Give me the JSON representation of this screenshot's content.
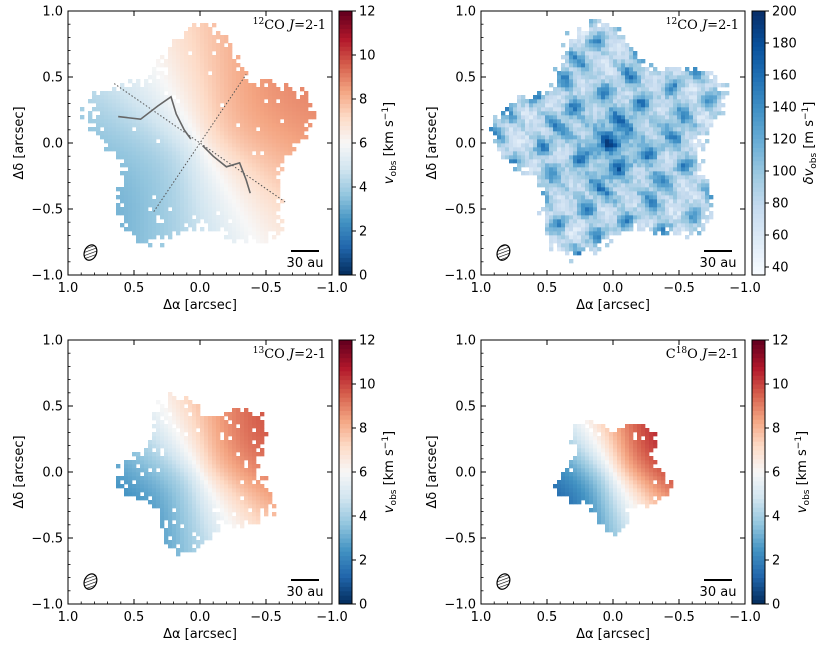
{
  "chart_data": [
    {
      "type": "heatmap",
      "panel": "top-left",
      "label": "12CO J=2-1",
      "label_parts": {
        "iso": "12",
        "mol": "CO",
        "trans": "J",
        "eq": "=2-1"
      },
      "xlabel": "Δα [arcsec]",
      "ylabel": "Δδ [arcsec]",
      "xlim": [
        1.0,
        -1.0
      ],
      "ylim": [
        -1.0,
        1.0
      ],
      "x_ticks": [
        "1.0",
        "0.5",
        "0.0",
        "−0.5",
        "−1.0"
      ],
      "y_ticks": [
        "−1.0",
        "−0.5",
        "0.0",
        "0.5",
        "1.0"
      ],
      "colorbar": {
        "label": "v_obs [km s^-1]",
        "range": [
          0,
          12
        ],
        "ticks": [
          "0",
          "2",
          "4",
          "6",
          "8",
          "10",
          "12"
        ],
        "cmap": "RdBu_r"
      },
      "scalebar": "30 au",
      "beam": {
        "x": 0.83,
        "y": -0.83
      },
      "map": {
        "kind": "velocity",
        "radius": 0.88,
        "pa_deg": 330,
        "grad": 4.5,
        "center": 6
      },
      "overlay": {
        "major_axis": [
          [
            0.65,
            0.45
          ],
          [
            -0.65,
            -0.45
          ]
        ],
        "minor_axis": [
          [
            0.35,
            -0.52
          ],
          [
            -0.35,
            0.52
          ]
        ],
        "contour_blue": [
          [
            0.62,
            0.2
          ],
          [
            0.45,
            0.18
          ],
          [
            0.32,
            0.28
          ],
          [
            0.22,
            0.35
          ],
          [
            0.18,
            0.22
          ],
          [
            0.12,
            0.1
          ],
          [
            0.07,
            0.03
          ]
        ],
        "contour_red": [
          [
            -0.02,
            -0.02
          ],
          [
            -0.1,
            -0.1
          ],
          [
            -0.2,
            -0.18
          ],
          [
            -0.3,
            -0.15
          ],
          [
            -0.35,
            -0.28
          ],
          [
            -0.38,
            -0.38
          ]
        ]
      }
    },
    {
      "type": "heatmap",
      "panel": "top-right",
      "label": "12CO J=2-1",
      "label_parts": {
        "iso": "12",
        "mol": "CO",
        "trans": "J",
        "eq": "=2-1"
      },
      "xlabel": "Δα [arcsec]",
      "ylabel": "Δδ [arcsec]",
      "xlim": [
        1.0,
        -1.0
      ],
      "ylim": [
        -1.0,
        1.0
      ],
      "x_ticks": [
        "1.0",
        "0.5",
        "0.0",
        "−0.5",
        "−1.0"
      ],
      "y_ticks": [
        "−1.0",
        "−0.5",
        "0.0",
        "0.5",
        "1.0"
      ],
      "colorbar": {
        "label": "δv_obs [m s^-1]",
        "range": [
          35,
          200
        ],
        "ticks": [
          "40",
          "60",
          "80",
          "100",
          "120",
          "140",
          "160",
          "180",
          "200"
        ],
        "cmap": "Blues"
      },
      "scalebar": "30 au",
      "beam": {
        "x": 0.83,
        "y": -0.83
      },
      "map": {
        "kind": "linewidth",
        "radius": 0.92
      }
    },
    {
      "type": "heatmap",
      "panel": "bottom-left",
      "label": "13CO J=2-1",
      "label_parts": {
        "iso": "13",
        "mol": "CO",
        "trans": "J",
        "eq": "=2-1"
      },
      "xlabel": "Δα [arcsec]",
      "ylabel": "Δδ [arcsec]",
      "xlim": [
        1.0,
        -1.0
      ],
      "ylim": [
        -1.0,
        1.0
      ],
      "x_ticks": [
        "1.0",
        "0.5",
        "0.0",
        "−0.5",
        "−1.0"
      ],
      "y_ticks": [
        "−1.0",
        "−0.5",
        "0.0",
        "0.5",
        "1.0"
      ],
      "colorbar": {
        "label": "v_obs [km s^-1]",
        "range": [
          0,
          12
        ],
        "ticks": [
          "0",
          "2",
          "4",
          "6",
          "8",
          "10",
          "12"
        ],
        "cmap": "RdBu_r"
      },
      "scalebar": "30 au",
      "beam": {
        "x": 0.83,
        "y": -0.83
      },
      "map": {
        "kind": "velocity",
        "radius": 0.62,
        "pa_deg": 330,
        "grad": 6.5,
        "center": 6
      }
    },
    {
      "type": "heatmap",
      "panel": "bottom-right",
      "label": "C18O J=2-1",
      "label_parts": {
        "iso": "18",
        "mol": "O",
        "prefix": "C",
        "trans": "J",
        "eq": "=2-1"
      },
      "xlabel": "Δα [arcsec]",
      "ylabel": "Δδ [arcsec]",
      "xlim": [
        1.0,
        -1.0
      ],
      "ylim": [
        -1.0,
        1.0
      ],
      "x_ticks": [
        "1.0",
        "0.5",
        "0.0",
        "−0.5",
        "−1.0"
      ],
      "y_ticks": [
        "−1.0",
        "−0.5",
        "0.0",
        "0.5",
        "1.0"
      ],
      "colorbar": {
        "label": "v_obs [km s^-1]",
        "range": [
          0,
          12
        ],
        "ticks": [
          "0",
          "2",
          "4",
          "6",
          "8",
          "10",
          "12"
        ],
        "cmap": "RdBu_r"
      },
      "scalebar": "30 au",
      "beam": {
        "x": 0.83,
        "y": -0.83
      },
      "map": {
        "kind": "velocity",
        "radius": 0.45,
        "pa_deg": 330,
        "grad": 9,
        "center": 6
      }
    }
  ]
}
